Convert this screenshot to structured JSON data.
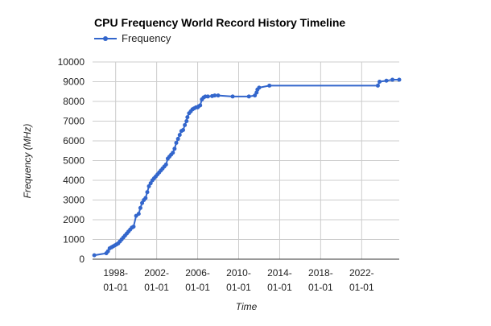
{
  "chart_data": {
    "type": "line",
    "title": "CPU Frequency World Record History Timeline",
    "xlabel": "Time",
    "ylabel": "Frequency (MHz)",
    "ylim": [
      0,
      10000
    ],
    "yticks": [
      0,
      1000,
      2000,
      3000,
      4000,
      5000,
      6000,
      7000,
      8000,
      9000,
      10000
    ],
    "xlim": [
      "1995-10-01",
      "2025-09-01"
    ],
    "xticks": [
      {
        "value": "1998-01-01",
        "line1": "1998-",
        "line2": "01-01"
      },
      {
        "value": "2002-01-01",
        "line1": "2002-",
        "line2": "01-01"
      },
      {
        "value": "2006-01-01",
        "line1": "2006-",
        "line2": "01-01"
      },
      {
        "value": "2010-01-01",
        "line1": "2010-",
        "line2": "01-01"
      },
      {
        "value": "2014-01-01",
        "line1": "2014-",
        "line2": "01-01"
      },
      {
        "value": "2018-01-01",
        "line1": "2018-",
        "line2": "01-01"
      },
      {
        "value": "2022-01-01",
        "line1": "2022-",
        "line2": "01-01"
      }
    ],
    "grid": true,
    "legend_position": "top-left",
    "color": "#3366cc",
    "series": [
      {
        "name": "Frequency",
        "x": [
          "1995-12-01",
          "1997-02-01",
          "1997-04-01",
          "1997-06-01",
          "1997-08-01",
          "1997-10-01",
          "1997-12-01",
          "1998-02-01",
          "1998-04-01",
          "1998-06-01",
          "1998-08-01",
          "1998-10-01",
          "1998-12-01",
          "1999-02-01",
          "1999-04-01",
          "1999-06-01",
          "1999-08-01",
          "1999-10-01",
          "2000-01-01",
          "2000-04-01",
          "2000-06-01",
          "2000-08-01",
          "2000-10-01",
          "2000-12-01",
          "2001-02-01",
          "2001-04-01",
          "2001-06-01",
          "2001-08-01",
          "2001-10-01",
          "2001-12-01",
          "2002-02-01",
          "2002-04-01",
          "2002-06-01",
          "2002-08-01",
          "2002-10-01",
          "2002-12-01",
          "2003-02-01",
          "2003-04-01",
          "2003-06-01",
          "2003-08-01",
          "2003-10-01",
          "2003-12-01",
          "2004-02-01",
          "2004-04-01",
          "2004-06-01",
          "2004-08-01",
          "2004-10-01",
          "2004-12-01",
          "2005-01-01",
          "2005-03-01",
          "2005-05-01",
          "2005-07-01",
          "2005-09-01",
          "2005-11-01",
          "2006-01-01",
          "2006-02-01",
          "2006-04-01",
          "2006-06-01",
          "2006-08-01",
          "2006-10-01",
          "2007-01-01",
          "2007-06-01",
          "2007-09-01",
          "2008-01-01",
          "2009-06-01",
          "2011-01-01",
          "2011-08-01",
          "2011-10-01",
          "2011-11-01",
          "2012-01-01",
          "2013-01-01",
          "2023-08-01",
          "2023-10-01",
          "2024-06-01",
          "2025-01-01",
          "2025-09-01"
        ],
        "y": [
          200,
          300,
          400,
          550,
          600,
          650,
          700,
          750,
          800,
          900,
          1000,
          1100,
          1200,
          1300,
          1400,
          1500,
          1600,
          1650,
          2200,
          2300,
          2600,
          2850,
          3000,
          3100,
          3400,
          3700,
          3850,
          4000,
          4100,
          4200,
          4300,
          4400,
          4500,
          4600,
          4700,
          4800,
          5100,
          5200,
          5300,
          5400,
          5600,
          5900,
          6100,
          6300,
          6500,
          6550,
          6800,
          7000,
          7200,
          7400,
          7500,
          7600,
          7650,
          7700,
          7700,
          7750,
          7800,
          8100,
          8200,
          8250,
          8250,
          8270,
          8300,
          8300,
          8250,
          8250,
          8300,
          8450,
          8600,
          8700,
          8800,
          8800,
          9000,
          9050,
          9100,
          9100
        ]
      }
    ]
  }
}
